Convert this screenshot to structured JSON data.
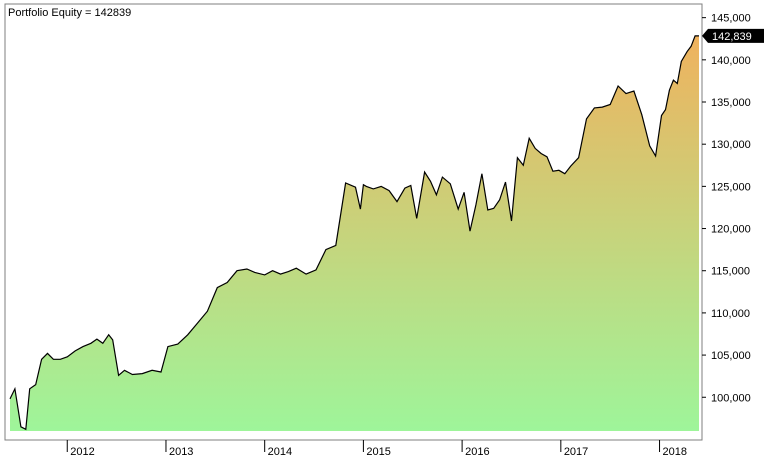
{
  "chart_data": {
    "type": "area",
    "title": "Portfolio Equity = 142839",
    "ylim": [
      96000,
      146500
    ],
    "xlim": [
      2011.42,
      2018.42
    ],
    "y_ticks": [
      {
        "value": 100000,
        "label": "100,000"
      },
      {
        "value": 105000,
        "label": "105,000"
      },
      {
        "value": 110000,
        "label": "110,000"
      },
      {
        "value": 115000,
        "label": "115,000"
      },
      {
        "value": 120000,
        "label": "120,000"
      },
      {
        "value": 125000,
        "label": "125,000"
      },
      {
        "value": 130000,
        "label": "130,000"
      },
      {
        "value": 135000,
        "label": "135,000"
      },
      {
        "value": 140000,
        "label": "140,000"
      },
      {
        "value": 145000,
        "label": "145,000"
      }
    ],
    "x_ticks": [
      {
        "value": 2012.0,
        "label": "2012"
      },
      {
        "value": 2013.0,
        "label": "2013"
      },
      {
        "value": 2014.0,
        "label": "2014"
      },
      {
        "value": 2015.0,
        "label": "2015"
      },
      {
        "value": 2016.0,
        "label": "2016"
      },
      {
        "value": 2017.0,
        "label": "2017"
      },
      {
        "value": 2018.0,
        "label": "2018"
      }
    ],
    "last_value_label": "142,839",
    "fill_colors": {
      "bottom": "#9ef59a",
      "top": "#efb25e"
    },
    "line_color": "#000000",
    "series": [
      {
        "x": [
          2011.42,
          2011.47,
          2011.53,
          2011.58,
          2011.62,
          2011.68,
          2011.74,
          2011.8,
          2011.86,
          2011.93,
          2012.0,
          2012.08,
          2012.16,
          2012.24,
          2012.3,
          2012.36,
          2012.42,
          2012.46,
          2012.52,
          2012.58,
          2012.66,
          2012.76,
          2012.86,
          2012.95,
          2013.02,
          2013.12,
          2013.22,
          2013.32,
          2013.42,
          2013.52,
          2013.62,
          2013.72,
          2013.82,
          2013.9,
          2014.0,
          2014.08,
          2014.16,
          2014.24,
          2014.32,
          2014.42,
          2014.52,
          2014.62,
          2014.72,
          2014.82,
          2014.92,
          2014.97,
          2015.0,
          2015.03,
          2015.1,
          2015.18,
          2015.26,
          2015.34,
          2015.42,
          2015.48,
          2015.54,
          2015.62,
          2015.68,
          2015.74,
          2015.8,
          2015.88,
          2015.96,
          2016.02,
          2016.08,
          2016.14,
          2016.2,
          2016.26,
          2016.32,
          2016.38,
          2016.44,
          2016.5,
          2016.56,
          2016.62,
          2016.68,
          2016.74,
          2016.8,
          2016.86,
          2016.92,
          2016.98,
          2017.04,
          2017.1,
          2017.18,
          2017.26,
          2017.34,
          2017.42,
          2017.5,
          2017.58,
          2017.66,
          2017.74,
          2017.82,
          2017.9,
          2017.96,
          2018.02,
          2018.06,
          2018.1,
          2018.14,
          2018.18,
          2018.22,
          2018.28,
          2018.32,
          2018.36,
          2018.4
        ],
        "values": [
          99800,
          101000,
          96500,
          96200,
          101000,
          101500,
          104500,
          105200,
          104500,
          104500,
          104800,
          105500,
          106000,
          106400,
          106900,
          106400,
          107400,
          106800,
          102600,
          103200,
          102700,
          102800,
          103200,
          103000,
          106000,
          106300,
          107400,
          108800,
          110200,
          113000,
          113600,
          115000,
          115200,
          114800,
          114500,
          115000,
          114600,
          114900,
          115300,
          114600,
          115100,
          117500,
          118000,
          125400,
          124900,
          122300,
          125200,
          125000,
          124700,
          125000,
          124500,
          123200,
          124800,
          125100,
          121200,
          126700,
          125600,
          124000,
          126100,
          125300,
          122300,
          124300,
          119700,
          122800,
          126500,
          122200,
          122400,
          123400,
          125500,
          120900,
          128400,
          127500,
          130700,
          129500,
          128900,
          128500,
          126800,
          126900,
          126500,
          127400,
          128400,
          133000,
          134300,
          134400,
          134700,
          136900,
          136000,
          136300,
          133500,
          129800,
          128600,
          133400,
          134100,
          136400,
          137600,
          137200,
          139800,
          141000,
          141600,
          142839,
          142839
        ]
      }
    ]
  }
}
